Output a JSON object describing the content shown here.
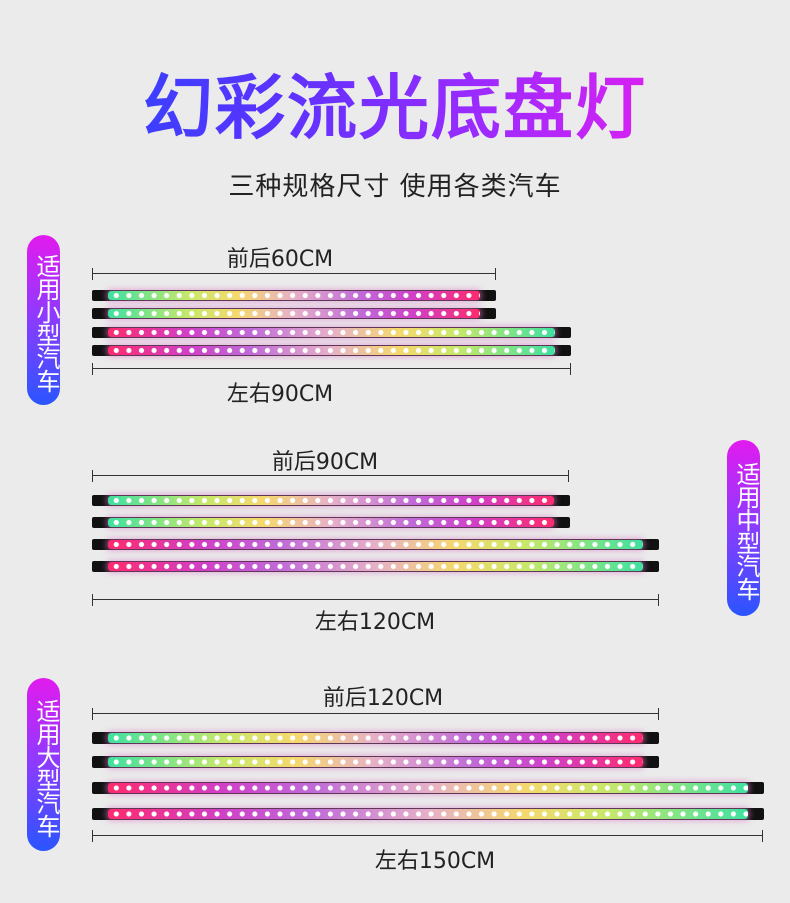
{
  "header": {
    "title": "幻彩流光底盘灯",
    "subtitle": "三种规格尺寸 使用各类汽车",
    "title_gradient": [
      "#1d4bff",
      "#9a2bff",
      "#f51fe0"
    ]
  },
  "groups": [
    {
      "badge": "适用小型汽车",
      "front_back": "前后60CM",
      "left_right": "左右90CM"
    },
    {
      "badge": "适用中型汽车",
      "front_back": "前后90CM",
      "left_right": "左右120CM"
    },
    {
      "badge": "适用大型汽车",
      "front_back": "前后120CM",
      "left_right": "左右150CM"
    }
  ],
  "badge_gradient": [
    "#e21bee",
    "#2a55ff"
  ],
  "strip_colors": [
    "#3fe0a0",
    "#f5d86e",
    "#c06ad8",
    "#ff2a6e"
  ]
}
